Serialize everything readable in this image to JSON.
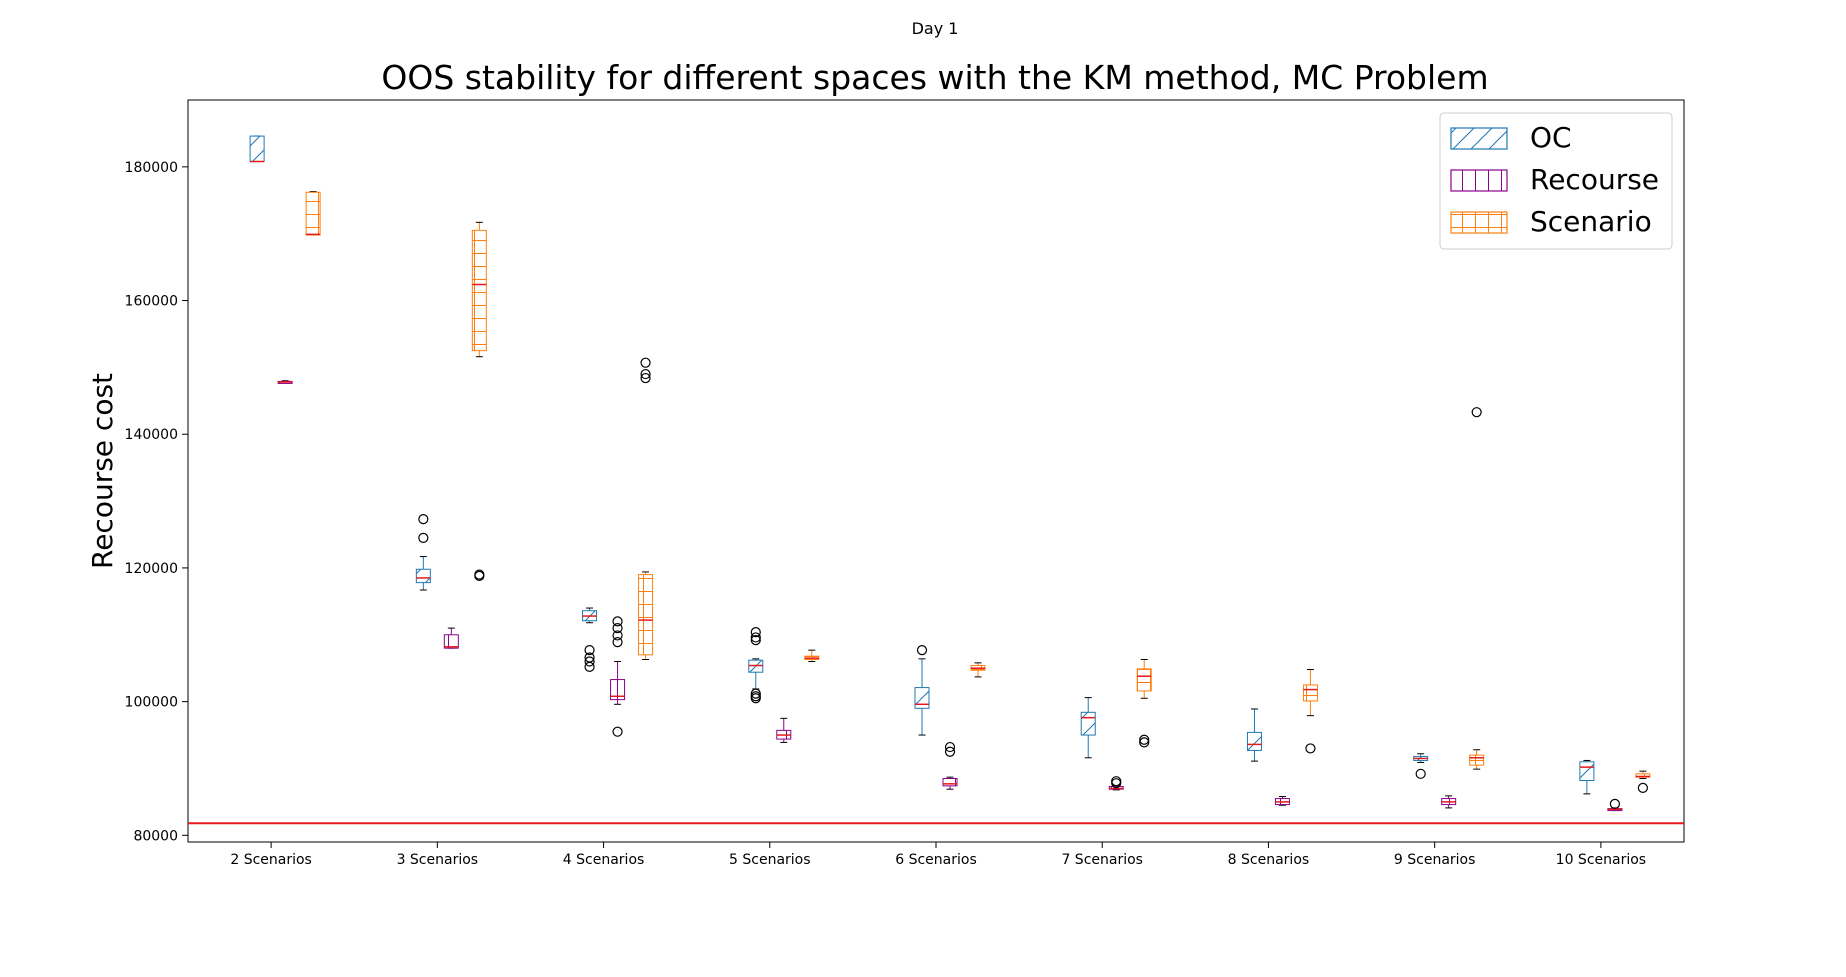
{
  "figure": {
    "suptitle": "Day 1"
  },
  "chart_data": {
    "type": "box",
    "title": "OOS stability for different spaces with the KM method, MC Problem",
    "xlabel": "",
    "ylabel": "Recourse cost",
    "ylim": [
      79000,
      190000
    ],
    "yticks": [
      80000,
      100000,
      120000,
      140000,
      160000,
      180000
    ],
    "categories": [
      "2 Scenarios",
      "3 Scenarios",
      "4 Scenarios",
      "5 Scenarios",
      "6 Scenarios",
      "7 Scenarios",
      "8 Scenarios",
      "9 Scenarios",
      "10 Scenarios"
    ],
    "reference_line": {
      "y": 81800,
      "color": "#e41a1c"
    },
    "median_color": "#e41a1c",
    "legend": {
      "position": "top-right"
    },
    "series": [
      {
        "name": "OC",
        "color": "#1f77b4",
        "hatch": "diagonal",
        "boxes": [
          {
            "whislo": 180800,
            "q1": 180800,
            "med": 180800,
            "q3": 184600,
            "whishi": 184600,
            "fliers": []
          },
          {
            "whislo": 116700,
            "q1": 117800,
            "med": 118500,
            "q3": 119800,
            "whishi": 121700,
            "fliers": [
              124500,
              127300
            ]
          },
          {
            "whislo": 111800,
            "q1": 112100,
            "med": 112800,
            "q3": 113600,
            "whishi": 114000,
            "fliers": [
              105200,
              106000,
              106600,
              107700
            ]
          },
          {
            "whislo": 101900,
            "q1": 104400,
            "med": 105400,
            "q3": 106200,
            "whishi": 106400,
            "fliers": [
              100500,
              100800,
              101200,
              109200,
              109600,
              110400
            ]
          },
          {
            "whislo": 95000,
            "q1": 99000,
            "med": 99600,
            "q3": 102100,
            "whishi": 106400,
            "fliers": [
              107700
            ]
          },
          {
            "whislo": 91600,
            "q1": 95000,
            "med": 97600,
            "q3": 98400,
            "whishi": 100600,
            "fliers": []
          },
          {
            "whislo": 91100,
            "q1": 92700,
            "med": 93600,
            "q3": 95400,
            "whishi": 98900,
            "fliers": []
          },
          {
            "whislo": 90900,
            "q1": 91200,
            "med": 91500,
            "q3": 91800,
            "whishi": 92200,
            "fliers": [
              89200
            ]
          },
          {
            "whislo": 86200,
            "q1": 88200,
            "med": 90200,
            "q3": 91000,
            "whishi": 91200,
            "fliers": []
          }
        ]
      },
      {
        "name": "Recourse",
        "color": "#8b008b",
        "hatch": "vertical",
        "boxes": [
          {
            "whislo": 147700,
            "q1": 147700,
            "med": 147800,
            "q3": 147900,
            "whishi": 148000,
            "fliers": []
          },
          {
            "whislo": 108000,
            "q1": 108000,
            "med": 108200,
            "q3": 110000,
            "whishi": 111000,
            "fliers": []
          },
          {
            "whislo": 99600,
            "q1": 100300,
            "med": 100800,
            "q3": 103300,
            "whishi": 106000,
            "fliers": [
              95500,
              108900,
              109900,
              111000,
              112000
            ]
          },
          {
            "whislo": 93900,
            "q1": 94400,
            "med": 95000,
            "q3": 95700,
            "whishi": 97500,
            "fliers": []
          },
          {
            "whislo": 86900,
            "q1": 87400,
            "med": 87700,
            "q3": 88500,
            "whishi": 88700,
            "fliers": [
              92500,
              93200
            ]
          },
          {
            "whislo": 86800,
            "q1": 86900,
            "med": 87000,
            "q3": 87300,
            "whishi": 87400,
            "fliers": [
              87800,
              88100
            ]
          },
          {
            "whislo": 84500,
            "q1": 84600,
            "med": 85000,
            "q3": 85500,
            "whishi": 85800,
            "fliers": []
          },
          {
            "whislo": 84100,
            "q1": 84600,
            "med": 85000,
            "q3": 85500,
            "whishi": 85900,
            "fliers": []
          },
          {
            "whislo": 83700,
            "q1": 83800,
            "med": 83900,
            "q3": 84000,
            "whishi": 84100,
            "fliers": [
              84700
            ]
          }
        ]
      },
      {
        "name": "Scenario",
        "color": "#ff7f0e",
        "hatch": "grid",
        "boxes": [
          {
            "whislo": 169800,
            "q1": 169800,
            "med": 169900,
            "q3": 176200,
            "whishi": 176300,
            "fliers": []
          },
          {
            "whislo": 151600,
            "q1": 152500,
            "med": 162400,
            "q3": 170500,
            "whishi": 171700,
            "fliers": [
              118800,
              119000
            ]
          },
          {
            "whislo": 106300,
            "q1": 107000,
            "med": 112200,
            "q3": 119000,
            "whishi": 119400,
            "fliers": [
              148400,
              149000,
              150700
            ]
          },
          {
            "whislo": 106000,
            "q1": 106300,
            "med": 106500,
            "q3": 106800,
            "whishi": 107700,
            "fliers": []
          },
          {
            "whislo": 103700,
            "q1": 104700,
            "med": 105000,
            "q3": 105400,
            "whishi": 105800,
            "fliers": []
          },
          {
            "whislo": 100500,
            "q1": 101600,
            "med": 103800,
            "q3": 104900,
            "whishi": 106300,
            "fliers": [
              93900,
              94300
            ]
          },
          {
            "whislo": 97900,
            "q1": 100100,
            "med": 101800,
            "q3": 102500,
            "whishi": 104800,
            "fliers": [
              93000
            ]
          },
          {
            "whislo": 89900,
            "q1": 90500,
            "med": 91600,
            "q3": 92000,
            "whishi": 92800,
            "fliers": [
              143300
            ]
          },
          {
            "whislo": 88500,
            "q1": 88700,
            "med": 88800,
            "q3": 89200,
            "whishi": 89600,
            "fliers": [
              87100
            ]
          }
        ]
      }
    ]
  }
}
